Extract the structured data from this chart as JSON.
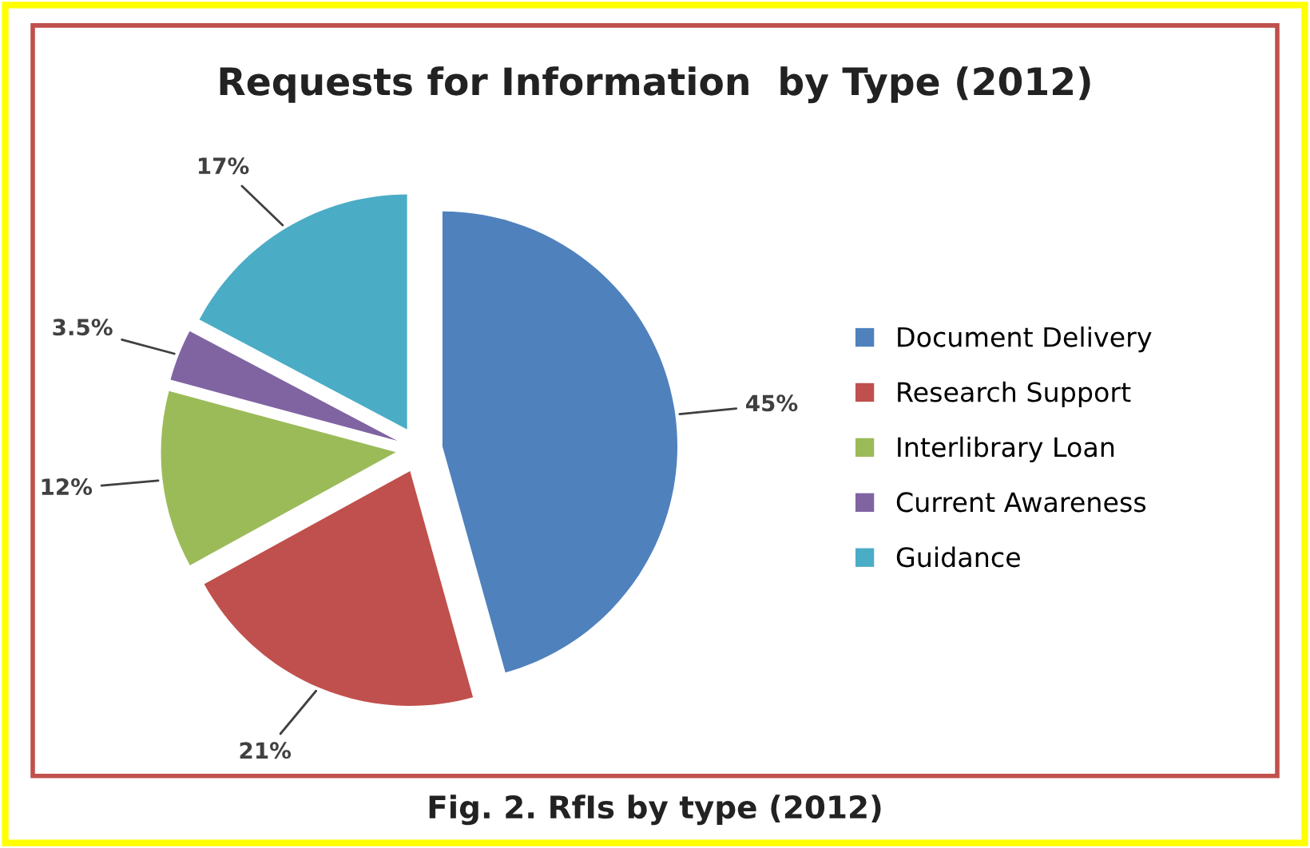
{
  "chart_data": {
    "type": "pie",
    "title": "Requests for Information  by Type (2012)",
    "categories": [
      "Document Delivery",
      "Research Support",
      "Interlibrary Loan",
      "Current Awareness",
      "Guidance"
    ],
    "values": [
      45,
      21,
      12,
      3.5,
      17
    ],
    "value_labels": [
      "45%",
      "21%",
      "12%",
      "3.5%",
      "17%"
    ],
    "colors": [
      "#4f81bd",
      "#c0504d",
      "#9bbb59",
      "#8064a2",
      "#4bacc6"
    ],
    "legend": "right",
    "annotations": [
      "Fig. 2. RfIs by type (2012)"
    ]
  }
}
